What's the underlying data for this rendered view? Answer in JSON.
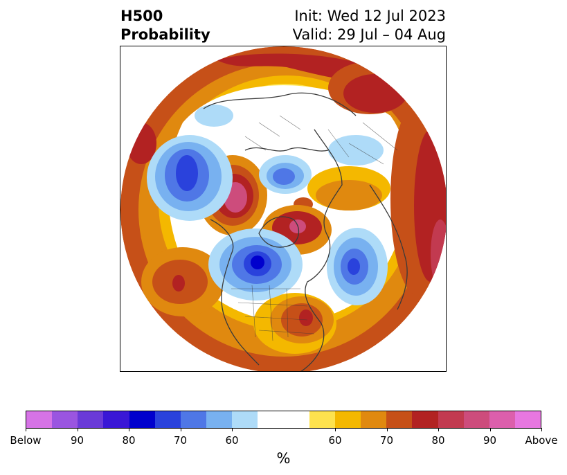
{
  "header": {
    "title_line1": "H500",
    "title_line2": "Probability",
    "init_text": "Init: Wed 12 Jul 2023",
    "valid_text": "Valid: 29 Jul – 04 Aug"
  },
  "colorbar": {
    "colors": [
      "#d673e6",
      "#9a55e0",
      "#6a3ad8",
      "#3a17d6",
      "#0000cd",
      "#2a42dc",
      "#4f77e6",
      "#78b1f0",
      "#aedbf8",
      "#ffffff",
      "#ffffff",
      "#fde24e",
      "#f4b800",
      "#e0890f",
      "#c65018",
      "#b22222",
      "#c23a50",
      "#cd4c7c",
      "#dc5fac",
      "#e777e0"
    ],
    "tick_labels": [
      "Below",
      "90",
      "80",
      "70",
      "60",
      "60",
      "70",
      "80",
      "90",
      "Above"
    ],
    "unit": "%"
  },
  "palette": {
    "orange": "#e0890f",
    "dark_orange": "#c65018",
    "red": "#b22222",
    "crimson": "#c23a50",
    "magenta": "#cd4c7c",
    "yellow": "#fde24e",
    "gold": "#f4b800",
    "light_blue": "#aedbf8",
    "sky_blue": "#78b1f0",
    "mid_blue": "#4f77e6",
    "royal_blue": "#2a42dc",
    "deep_blue": "#0000cd",
    "coast": "#3a3a3a"
  }
}
